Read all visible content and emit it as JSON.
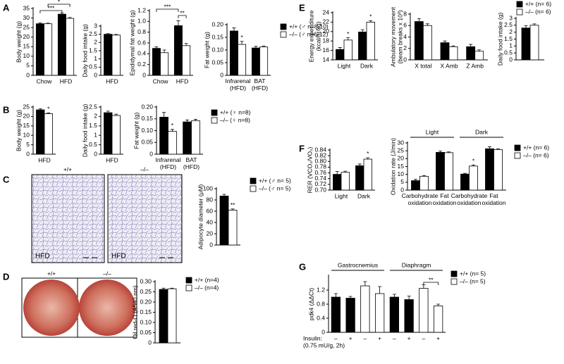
{
  "panel_labels": [
    "A",
    "B",
    "C",
    "D",
    "E",
    "F",
    "G"
  ],
  "panel_c_images": {
    "labels": [
      "+/+",
      "–/–"
    ],
    "tag": "HFD"
  },
  "panel_d_images": {
    "labels": [
      "+/+",
      "–/–"
    ]
  },
  "chart_data": [
    {
      "type": "bar",
      "ylabel": "Body weight (g)",
      "categories": [
        "Chow",
        "HFD"
      ],
      "series": [
        {
          "name": "+/+ (♂ n=8-10)",
          "color": "#000000",
          "values": [
            27,
            32
          ],
          "errors": [
            0.4,
            0.7
          ]
        },
        {
          "name": "–/– (♂ n=6-12)",
          "color": "#ffffff",
          "values": [
            27,
            29.8
          ],
          "errors": [
            0.3,
            0.5
          ]
        }
      ],
      "ylim": [
        0,
        35
      ],
      "yticks": [
        0,
        5,
        10,
        15,
        20,
        25,
        30,
        35
      ],
      "annotations": [
        "***",
        "*"
      ]
    },
    {
      "type": "bar",
      "ylabel": "Daily food intake (g)",
      "categories": [
        "HFD"
      ],
      "series": [
        {
          "name": "+/+ (♂ n=8-10)",
          "color": "#000000",
          "values": [
            2.5
          ],
          "errors": [
            0.04
          ]
        },
        {
          "name": "–/– (♂ n=6-12)",
          "color": "#ffffff",
          "values": [
            2.45
          ],
          "errors": [
            0.04
          ]
        }
      ],
      "ylim": [
        0,
        3
      ],
      "yticks": [
        0,
        0.5,
        1,
        1.5,
        2,
        2.5,
        3
      ]
    },
    {
      "type": "bar",
      "ylabel": "Epididymal fat weight (g)",
      "categories": [
        "Chow",
        "HFD"
      ],
      "series": [
        {
          "name": "+/+ (♂ n=8-10)",
          "color": "#000000",
          "values": [
            0.5,
            0.92
          ],
          "errors": [
            0.03,
            0.09
          ]
        },
        {
          "name": "–/– (♂ n=6-12)",
          "color": "#ffffff",
          "values": [
            0.42,
            0.55
          ],
          "errors": [
            0.05,
            0.04
          ]
        }
      ],
      "ylim": [
        0,
        1.2
      ],
      "yticks": [
        0,
        0.2,
        0.4,
        0.6,
        0.8,
        {
          "value": 1,
          "label": "1.0"
        },
        1.2
      ],
      "annotations": [
        "***",
        "**"
      ]
    },
    {
      "type": "bar",
      "ylabel": "Fat weight (g)",
      "categories": [
        [
          "Infrarenal",
          "(HFD)"
        ],
        [
          "BAT",
          "(HFD)"
        ]
      ],
      "series": [
        {
          "name": "+/+ (♂ n=8-10)",
          "color": "#000000",
          "values": [
            0.175,
            0.108
          ],
          "errors": [
            0.012,
            0.006
          ]
        },
        {
          "name": "–/– (♂ n=6-12)",
          "color": "#ffffff",
          "values": [
            0.122,
            0.112
          ],
          "errors": [
            0.012,
            0.004
          ]
        }
      ],
      "ylim": [
        0,
        0.2
      ],
      "yticks": [
        0,
        0.05,
        {
          "value": 0.1,
          "label": "0.10"
        },
        0.15,
        {
          "value": 0.2,
          "label": "0.20"
        }
      ],
      "annotations": [
        "*"
      ],
      "legend": "right"
    },
    {
      "type": "bar",
      "ylabel": "Body weight (g)",
      "categories": [
        "HFD"
      ],
      "series": [
        {
          "name": "+/+ (♀ n=8)",
          "color": "#000000",
          "values": [
            23.5
          ],
          "errors": [
            0.6
          ]
        },
        {
          "name": "–/– (♀ n=8)",
          "color": "#ffffff",
          "values": [
            21.5
          ],
          "errors": [
            0.4
          ]
        }
      ],
      "ylim": [
        0,
        25
      ],
      "yticks": [
        0,
        5,
        10,
        15,
        20,
        25
      ],
      "annotations": [
        "*"
      ]
    },
    {
      "type": "bar",
      "ylabel": "Daily food intake (g)",
      "categories": [
        "HFD"
      ],
      "series": [
        {
          "name": "+/+ (♀ n=8)",
          "color": "#000000",
          "values": [
            2.2
          ],
          "errors": [
            0.08
          ]
        },
        {
          "name": "–/– (♀ n=8)",
          "color": "#ffffff",
          "values": [
            2.05
          ],
          "errors": [
            0.07
          ]
        }
      ],
      "ylim": [
        0,
        2.5
      ],
      "yticks": [
        0,
        0.5,
        1,
        1.5,
        2,
        2.5
      ]
    },
    {
      "type": "bar",
      "ylabel": "Fat weight (g)",
      "categories": [
        [
          "Infrarenal",
          "(HFD)"
        ],
        [
          "BAT",
          "(HFD)"
        ]
      ],
      "series": [
        {
          "name": "+/+ (♀ n=8)",
          "color": "#000000",
          "values": [
            0.157,
            0.137
          ],
          "errors": [
            0.02,
            0.008
          ]
        },
        {
          "name": "–/– (♀ n=8)",
          "color": "#ffffff",
          "values": [
            0.097,
            0.142
          ],
          "errors": [
            0.008,
            0.006
          ]
        }
      ],
      "ylim": [
        0,
        0.2
      ],
      "yticks": [
        0,
        0.05,
        {
          "value": 0.1,
          "label": "0.10"
        },
        0.15,
        {
          "value": 0.2,
          "label": "0.20"
        }
      ],
      "annotations": [
        "*"
      ],
      "legend": "right"
    },
    {
      "type": "bar",
      "ylabel": "Adipocyte diameter (μM)",
      "categories": [
        null
      ],
      "series": [
        {
          "name": "+/+ (♂ n= 5)",
          "color": "#000000",
          "values": [
            87
          ],
          "errors": [
            3
          ]
        },
        {
          "name": "–/– (♂ n= 5)",
          "color": "#ffffff",
          "values": [
            62
          ],
          "errors": [
            2
          ]
        }
      ],
      "ylim": [
        0,
        100
      ],
      "yticks": [
        0,
        20,
        40,
        60,
        80,
        100
      ],
      "annotations": [
        "**"
      ],
      "legend": "right"
    },
    {
      "type": "bar",
      "ylabel": "Oil red-O (A540 nm)",
      "categories": [
        null
      ],
      "series": [
        {
          "name": "+/+ (n=4)",
          "color": "#000000",
          "values": [
            0.262
          ],
          "errors": [
            0.006
          ]
        },
        {
          "name": "–/– (n=4)",
          "color": "#ffffff",
          "values": [
            0.265
          ],
          "errors": [
            0.003
          ]
        }
      ],
      "ylim": [
        0,
        0.3
      ],
      "yticks": [
        0,
        0.05,
        {
          "value": 0.1,
          "label": "0.10"
        },
        0.15,
        {
          "value": 0.2,
          "label": "0.20"
        },
        0.25,
        {
          "value": 0.3,
          "label": "0.30"
        }
      ],
      "legend": "right"
    },
    {
      "type": "bar",
      "ylabel": [
        "Energy expenditure",
        "(kcal/hr/kg)"
      ],
      "categories": [
        "Light",
        "Dark"
      ],
      "series": [
        {
          "name": "+/+ (n= 6)",
          "color": "#000000",
          "values": [
            16.2,
            19.9
          ],
          "errors": [
            0.4,
            0.5
          ]
        },
        {
          "name": "–/– (n= 6)",
          "color": "#ffffff",
          "values": [
            18.2,
            22
          ],
          "errors": [
            0.5,
            0.3
          ]
        }
      ],
      "ylim": [
        14,
        24
      ],
      "yticks": [
        14,
        16,
        18,
        20,
        22,
        24
      ],
      "annotations": [
        "*",
        "*"
      ]
    },
    {
      "type": "bar",
      "ylabel": [
        "Ambulatory movement",
        "(beam breaks x 10³)"
      ],
      "categories": [
        "X total",
        "X Amb",
        "Z Amb"
      ],
      "series": [
        {
          "name": "+/+ (n= 6)",
          "color": "#000000",
          "values": [
            6.7,
            3,
            2.3
          ],
          "errors": [
            0.5,
            0.3,
            0.4
          ]
        },
        {
          "name": "–/– (n= 6)",
          "color": "#ffffff",
          "values": [
            6,
            2.3,
            1.5
          ],
          "errors": [
            0.3,
            0.15,
            0.25
          ]
        }
      ],
      "ylim": [
        0,
        8
      ],
      "yticks": [
        0,
        2,
        4,
        6,
        8
      ]
    },
    {
      "type": "bar",
      "ylabel": "Daily food intake (g)",
      "categories": [
        null
      ],
      "series": [
        {
          "name": "+/+ (n= 6)",
          "color": "#000000",
          "values": [
            2.3
          ],
          "errors": [
            0.18
          ]
        },
        {
          "name": "–/– (n= 6)",
          "color": "#ffffff",
          "values": [
            2.5
          ],
          "errors": [
            0.1
          ]
        }
      ],
      "ylim": [
        0,
        3
      ],
      "yticks": [
        0,
        0.5,
        1,
        1.5,
        2,
        2.5,
        3
      ],
      "legend": "right"
    },
    {
      "type": "bar",
      "ylabel": "RER (VCO₂/VO₂)",
      "categories": [
        "Light",
        "Dark"
      ],
      "series": [
        {
          "name": "+/+ (n= 6)",
          "color": "#000000",
          "values": [
            0.755,
            0.785
          ],
          "errors": [
            0.01,
            0.006
          ]
        },
        {
          "name": "–/– (n= 6)",
          "color": "#ffffff",
          "values": [
            0.762,
            0.808
          ],
          "errors": [
            0.004,
            0.005
          ]
        }
      ],
      "ylim": [
        0.7,
        0.84
      ],
      "yticks": [
        {
          "value": 0.7,
          "label": "0.70"
        },
        0.72,
        0.74,
        0.76,
        0.78,
        {
          "value": 0.8,
          "label": "0.80"
        },
        0.82,
        0.84
      ],
      "annotations": [
        "*"
      ]
    },
    {
      "type": "bar",
      "ylabel": "Oxidation rate (J/min)",
      "categories": [
        [
          "Carbohydrate",
          "oxidation"
        ],
        [
          "Fat",
          "oxidation"
        ],
        [
          "Carbohydrate",
          "oxidation"
        ],
        [
          "Fat",
          "oxidation"
        ]
      ],
      "groups": [
        "Light",
        "Dark"
      ],
      "series": [
        {
          "name": "+/+ (n= 6)",
          "color": "#000000",
          "values": [
            6,
            24,
            10.2,
            26.3
          ],
          "errors": [
            0.8,
            0.8,
            0.5,
            1.2
          ]
        },
        {
          "name": "–/– (n= 6)",
          "color": "#ffffff",
          "values": [
            8.8,
            23.8,
            15.3,
            25.8
          ],
          "errors": [
            0.5,
            0.5,
            0.7,
            0.5
          ]
        }
      ],
      "ylim": [
        0,
        30
      ],
      "yticks": [
        0,
        5,
        10,
        15,
        20,
        25,
        30
      ],
      "annotations": [
        "*"
      ],
      "legend": "right"
    },
    {
      "type": "bar",
      "ylabel": "pdk4 (ΔΔCt)",
      "categories": [
        "–",
        "+",
        "–",
        "+",
        "–",
        "+",
        "–",
        "+"
      ],
      "xlabel": [
        "Insulin:",
        "(0.75 mU/g, 2h)"
      ],
      "groups": [
        "Gastrocnemius",
        "Diaphragm"
      ],
      "series": [
        {
          "name": "+/+ (n= 5)",
          "color": "#000000",
          "values": [
            1,
            0.97,
            null,
            null,
            1,
            0.93,
            null,
            null
          ],
          "errors": [
            0.1,
            0.05,
            null,
            null,
            0.08,
            0.1,
            null,
            null
          ]
        },
        {
          "name": "–/– (n= 5)",
          "color": "#ffffff",
          "values": [
            null,
            null,
            1.32,
            1.1,
            null,
            null,
            1.25,
            0.75
          ],
          "errors": [
            null,
            null,
            0.12,
            0.2,
            null,
            null,
            0.1,
            0.05
          ]
        }
      ],
      "ylim": [
        0,
        1.6
      ],
      "yticks": [
        0,
        0.4,
        0.8,
        1.2
      ],
      "annotations": [
        "**"
      ],
      "legend": "right"
    }
  ]
}
